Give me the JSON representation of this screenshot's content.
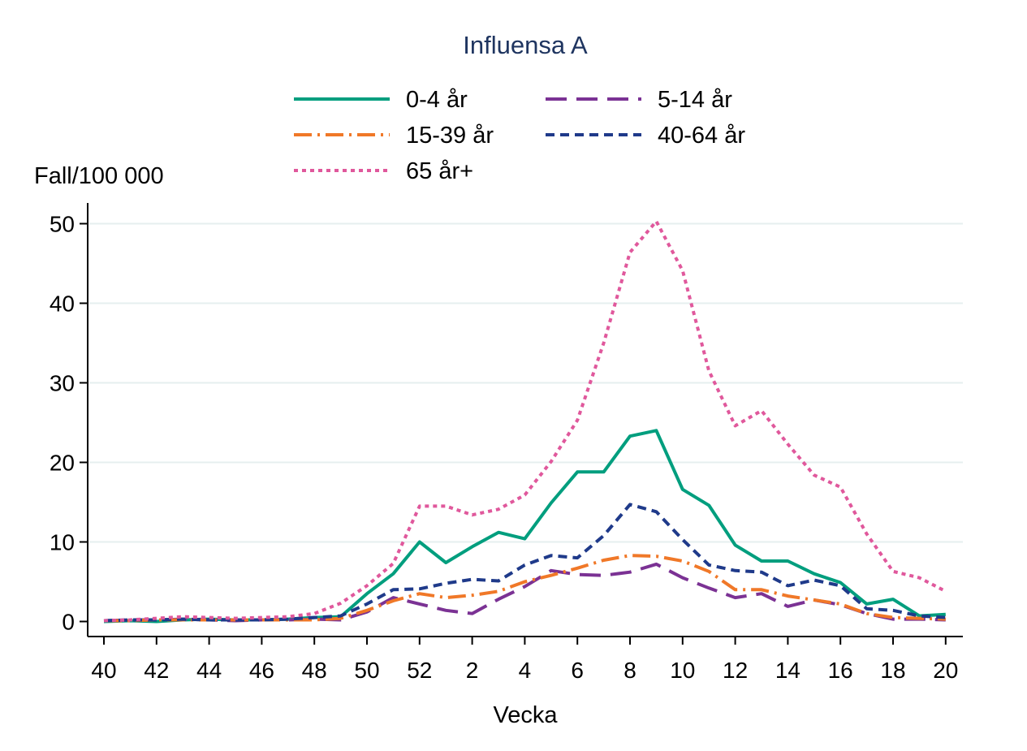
{
  "chart_data": {
    "type": "line",
    "title": "Influensa A",
    "ylabel": "Fall/100 000",
    "xlabel": "Vecka",
    "ylim": [
      0,
      50
    ],
    "y_ticks": [
      0,
      10,
      20,
      30,
      40,
      50
    ],
    "grid": true,
    "legend_position": "top",
    "x": [
      40,
      41,
      42,
      43,
      44,
      45,
      46,
      47,
      48,
      49,
      50,
      51,
      52,
      1,
      2,
      3,
      4,
      5,
      6,
      7,
      8,
      9,
      10,
      11,
      12,
      13,
      14,
      15,
      16,
      17,
      18,
      19,
      20
    ],
    "x_tick_labels": [
      "40",
      "42",
      "44",
      "46",
      "48",
      "50",
      "52",
      "2",
      "4",
      "6",
      "8",
      "10",
      "12",
      "14",
      "16",
      "18",
      "20"
    ],
    "series": [
      {
        "name": "0-4 år",
        "color": "#009E7E",
        "dash": "solid",
        "values": [
          0,
          0.1,
          0,
          0.2,
          0.3,
          0.2,
          0.2,
          0.3,
          0.5,
          0.6,
          3.5,
          6,
          10,
          7.4,
          9.4,
          11.2,
          10.4,
          14.9,
          18.8,
          18.8,
          23.3,
          24,
          16.6,
          14.6,
          9.6,
          7.6,
          7.6,
          6,
          4.9,
          2.2,
          2.8,
          0.7,
          0.9
        ]
      },
      {
        "name": "5-14 år",
        "color": "#7B3294",
        "dash": "longdash",
        "values": [
          0.1,
          0.2,
          0.2,
          0.3,
          0.2,
          0.1,
          0.2,
          0.2,
          0.3,
          0.2,
          1.2,
          3,
          2.2,
          1.4,
          1,
          2.8,
          4.4,
          6.4,
          5.9,
          5.8,
          6.2,
          7.2,
          5.5,
          4.2,
          3,
          3.5,
          1.9,
          2.7,
          2.1,
          1,
          0.3,
          0.3,
          0.2
        ]
      },
      {
        "name": "15-39 år",
        "color": "#F07828",
        "dash": "dashdot",
        "values": [
          0.1,
          0.1,
          0.2,
          0.2,
          0.2,
          0.2,
          0.2,
          0.2,
          0.2,
          0.4,
          1.4,
          2.6,
          3.5,
          3,
          3.3,
          3.8,
          5,
          5.8,
          6.7,
          7.7,
          8.3,
          8.2,
          7.6,
          6.3,
          4,
          4,
          3.2,
          2.7,
          2.2,
          1,
          0.5,
          0.4,
          0.3
        ]
      },
      {
        "name": "40-64 år",
        "color": "#1F3A8A",
        "dash": "shortdash",
        "values": [
          0.1,
          0.2,
          0.2,
          0.3,
          0.2,
          0.2,
          0.2,
          0.3,
          0.5,
          0.7,
          2.2,
          4,
          4.1,
          4.8,
          5.3,
          5.1,
          7.1,
          8.3,
          8,
          10.8,
          14.7,
          13.8,
          10.3,
          7.1,
          6.4,
          6.2,
          4.5,
          5.2,
          4.5,
          1.6,
          1.4,
          0.7,
          0.5
        ]
      },
      {
        "name": "65 år+",
        "color": "#E0589C",
        "dash": "dotted",
        "values": [
          0.1,
          0.2,
          0.4,
          0.6,
          0.5,
          0.4,
          0.5,
          0.6,
          1,
          2.3,
          4.5,
          7.3,
          14.5,
          14.5,
          13.4,
          14.1,
          15.9,
          20.1,
          25.3,
          35,
          46.4,
          50.3,
          44.1,
          31.5,
          24.6,
          26.5,
          22.3,
          18.4,
          16.9,
          11,
          6.3,
          5.5,
          3.8
        ]
      }
    ]
  }
}
